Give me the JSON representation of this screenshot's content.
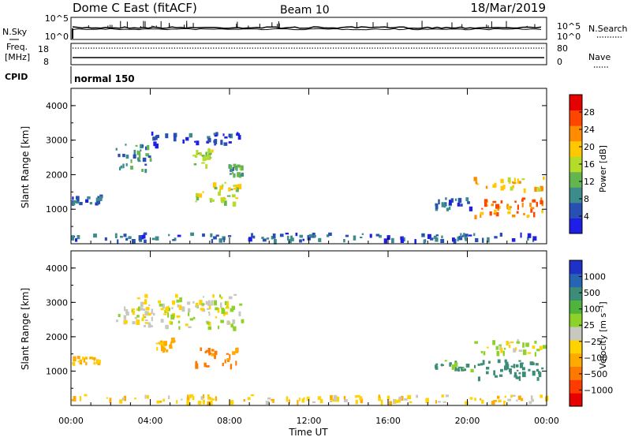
{
  "header": {
    "title": "Dome C East (fitACF)",
    "beam": "Beam 10",
    "date": "18/Mar/2019"
  },
  "top_panels": {
    "nsky_label": "N.Sky",
    "nsky_ticks": [
      "10^5",
      "10^0"
    ],
    "nsearch_label": "N.Search",
    "nsearch_ticks": [
      "10^5",
      "10^0"
    ],
    "freq_label_1": "Freq.",
    "freq_label_2": "[MHz]",
    "freq_ticks": [
      "18",
      "8"
    ],
    "nave_label": "Nave",
    "nave_ticks": [
      "80",
      "0"
    ],
    "cpid_label": "CPID",
    "cpid_value": "normal 150"
  },
  "colors": {
    "power_scale": [
      "#1e1ee6",
      "#2850b4",
      "#3c8c8c",
      "#64b450",
      "#b4dc28",
      "#ffc800",
      "#ff8c00",
      "#ff4600",
      "#e60000"
    ],
    "velocity_scale": [
      "#1e32c8",
      "#2864b4",
      "#3c8c78",
      "#50b43c",
      "#8cd228",
      "#c8c8c0",
      "#ffd200",
      "#ffaa00",
      "#ff7800",
      "#ff3c00",
      "#e60000"
    ]
  },
  "chart_data": [
    {
      "type": "heatmap",
      "name": "power",
      "ylabel": "Slant Range [km]",
      "yticks": [
        "4000",
        "3000",
        "2000",
        "1000"
      ],
      "ylim": [
        0,
        4500
      ],
      "xticks": [
        "00:00",
        "04:00",
        "08:00",
        "12:00",
        "16:00",
        "20:00",
        "00:00"
      ],
      "xlim": [
        0,
        24
      ],
      "colorbar_label": "Power [dB]",
      "colorbar_ticks": [
        "28",
        "24",
        "20",
        "16",
        "12",
        "8",
        "4"
      ],
      "colorbar_range": [
        0,
        32
      ],
      "blobs": [
        {
          "t0": 4.0,
          "t1": 8.6,
          "r0": 2900,
          "r1": 3250,
          "v": 4
        },
        {
          "t0": 2.2,
          "t1": 4.0,
          "r0": 2100,
          "r1": 2900,
          "v": 9
        },
        {
          "t0": 6.1,
          "t1": 7.2,
          "r0": 2300,
          "r1": 2800,
          "v": 14
        },
        {
          "t0": 7.9,
          "t1": 8.6,
          "r0": 2000,
          "r1": 2400,
          "v": 11
        },
        {
          "t0": 6.2,
          "t1": 8.5,
          "r0": 1200,
          "r1": 1800,
          "v": 17
        },
        {
          "t0": 0.0,
          "t1": 1.5,
          "r0": 1200,
          "r1": 1450,
          "v": 6
        },
        {
          "t0": 18.3,
          "t1": 20.3,
          "r0": 1000,
          "r1": 1350,
          "v": 6
        },
        {
          "t0": 20.3,
          "t1": 23.8,
          "r0": 1600,
          "r1": 1950,
          "v": 20
        },
        {
          "t0": 20.3,
          "t1": 23.8,
          "r0": 800,
          "r1": 1350,
          "v": 24
        },
        {
          "t0": 0.0,
          "t1": 24.0,
          "r0": 120,
          "r1": 330,
          "v": 6
        }
      ]
    },
    {
      "type": "heatmap",
      "name": "velocity",
      "ylabel": "Slant Range [km]",
      "yticks": [
        "4000",
        "3000",
        "2000",
        "1000"
      ],
      "ylim": [
        0,
        4500
      ],
      "xticks": [
        "00:00",
        "04:00",
        "08:00",
        "12:00",
        "16:00",
        "20:00",
        "00:00"
      ],
      "xlim": [
        0,
        24
      ],
      "xlabel": "Time UT",
      "colorbar_label": "Velocity [m s⁻¹]",
      "colorbar_ticks": [
        "1000",
        "500",
        "100",
        "25",
        "−25",
        "−100",
        "−500",
        "−1000"
      ],
      "blobs": [
        {
          "t0": 3.2,
          "t1": 8.6,
          "r0": 2300,
          "r1": 3250,
          "v": 0
        },
        {
          "t0": 2.2,
          "t1": 3.8,
          "r0": 2400,
          "r1": 2900,
          "v": 0
        },
        {
          "t0": 6.2,
          "t1": 8.4,
          "r0": 1150,
          "r1": 1700,
          "v": -300
        },
        {
          "t0": 4.2,
          "t1": 5.2,
          "r0": 1600,
          "r1": 2000,
          "v": -150
        },
        {
          "t0": 0.0,
          "t1": 1.5,
          "r0": 1250,
          "r1": 1450,
          "v": -120
        },
        {
          "t0": 18.3,
          "t1": 20.3,
          "r0": 1050,
          "r1": 1350,
          "v": 120
        },
        {
          "t0": 20.3,
          "t1": 23.8,
          "r0": 1550,
          "r1": 1950,
          "v": 0
        },
        {
          "t0": 20.3,
          "t1": 23.8,
          "r0": 800,
          "r1": 1350,
          "v": 300
        },
        {
          "t0": 0.0,
          "t1": 24.0,
          "r0": 120,
          "r1": 330,
          "v": -60
        }
      ]
    }
  ]
}
